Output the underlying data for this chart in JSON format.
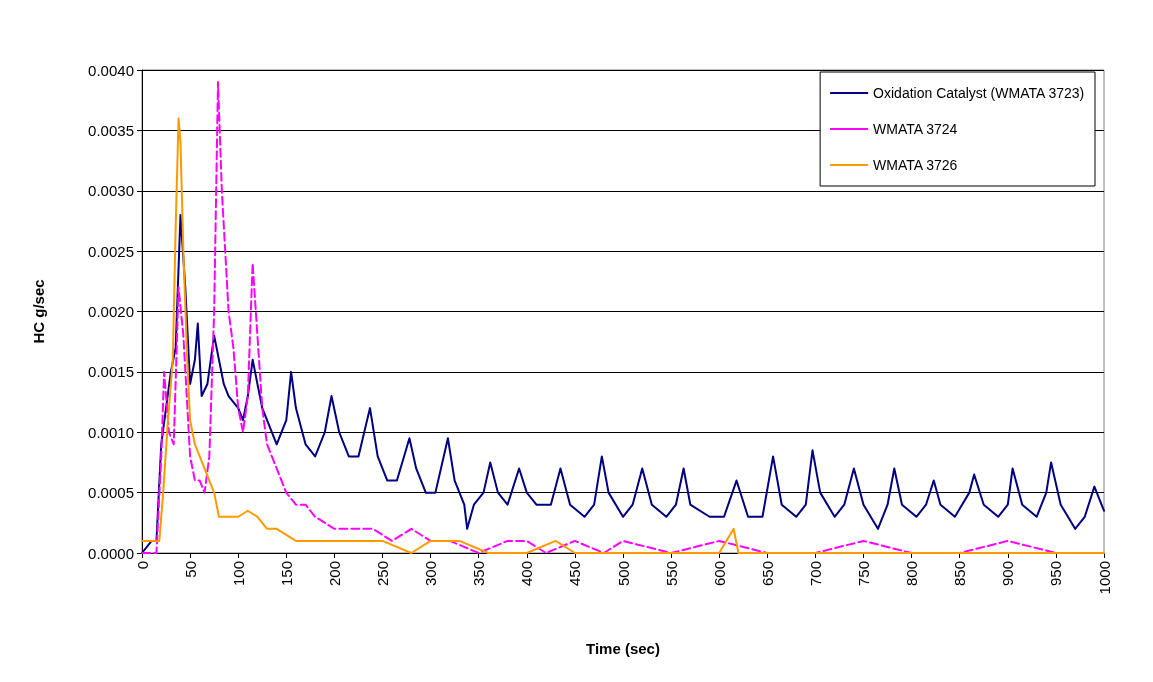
{
  "chart_data": {
    "type": "line",
    "xlabel": "Time (sec)",
    "ylabel": "HC g/sec",
    "xlim": [
      0,
      1000
    ],
    "xticks": [
      0,
      50,
      100,
      150,
      200,
      250,
      300,
      350,
      400,
      450,
      500,
      550,
      600,
      650,
      700,
      750,
      800,
      850,
      900,
      950,
      1000
    ],
    "ylim": [
      0,
      0.004
    ],
    "yticks": [
      {
        "value": 0,
        "label": "0.0000"
      },
      {
        "value": 0.0005,
        "label": "0.0005"
      },
      {
        "value": 0.001,
        "label": "0.0010"
      },
      {
        "value": 0.0015,
        "label": "0.0015"
      },
      {
        "value": 0.002,
        "label": "0.0020"
      },
      {
        "value": 0.0025,
        "label": "0.0025"
      },
      {
        "value": 0.003,
        "label": "0.0030"
      },
      {
        "value": 0.0035,
        "label": "0.0035"
      },
      {
        "value": 0.004,
        "label": "0.0040"
      }
    ],
    "grid": "y",
    "legend": "top right",
    "marker": "none",
    "series": [
      {
        "name": "Oxidation Catalyst (WMATA 3723)",
        "color": "#000080",
        "line_style": "solid",
        "x": [
          0,
          10,
          15,
          20,
          25,
          30,
          35,
          40,
          45,
          50,
          55,
          58,
          62,
          68,
          75,
          80,
          85,
          90,
          100,
          105,
          110,
          115,
          120,
          125,
          130,
          140,
          150,
          155,
          160,
          170,
          180,
          190,
          197,
          205,
          215,
          225,
          237,
          245,
          255,
          265,
          278,
          285,
          295,
          305,
          318,
          325,
          335,
          338,
          345,
          355,
          362,
          370,
          380,
          392,
          400,
          410,
          425,
          435,
          445,
          460,
          470,
          478,
          485,
          500,
          510,
          520,
          530,
          545,
          555,
          563,
          570,
          590,
          605,
          618,
          630,
          645,
          656,
          665,
          680,
          690,
          697,
          705,
          720,
          730,
          740,
          750,
          765,
          775,
          782,
          790,
          805,
          815,
          823,
          830,
          845,
          860,
          865,
          875,
          890,
          900,
          905,
          915,
          930,
          940,
          945,
          955,
          970,
          980,
          990,
          1000
        ],
        "values": [
          0,
          0.0001,
          0.0001,
          0.0009,
          0.0012,
          0.0015,
          0.0017,
          0.0028,
          0.0022,
          0.0014,
          0.0016,
          0.0019,
          0.0013,
          0.0014,
          0.0018,
          0.0016,
          0.0014,
          0.0013,
          0.0012,
          0.0011,
          0.0013,
          0.0016,
          0.0014,
          0.0012,
          0.0011,
          0.0009,
          0.0011,
          0.0015,
          0.0012,
          0.0009,
          0.0008,
          0.001,
          0.0013,
          0.001,
          0.0008,
          0.0008,
          0.0012,
          0.0008,
          0.0006,
          0.0006,
          0.00095,
          0.0007,
          0.0005,
          0.0005,
          0.00095,
          0.0006,
          0.0004,
          0.0002,
          0.0004,
          0.0005,
          0.00075,
          0.0005,
          0.0004,
          0.0007,
          0.0005,
          0.0004,
          0.0004,
          0.0007,
          0.0004,
          0.0003,
          0.0004,
          0.0008,
          0.0005,
          0.0003,
          0.0004,
          0.0007,
          0.0004,
          0.0003,
          0.0004,
          0.0007,
          0.0004,
          0.0003,
          0.0003,
          0.0006,
          0.0003,
          0.0003,
          0.0008,
          0.0004,
          0.0003,
          0.0004,
          0.00085,
          0.0005,
          0.0003,
          0.0004,
          0.0007,
          0.0004,
          0.0002,
          0.0004,
          0.0007,
          0.0004,
          0.0003,
          0.0004,
          0.0006,
          0.0004,
          0.0003,
          0.0005,
          0.00065,
          0.0004,
          0.0003,
          0.0004,
          0.0007,
          0.0004,
          0.0003,
          0.0005,
          0.00075,
          0.0004,
          0.0002,
          0.0003,
          0.00055,
          0.00035
        ]
      },
      {
        "name": "WMATA 3724",
        "color": "#ff00ff",
        "line_style": "dashed",
        "x": [
          0,
          15,
          20,
          23,
          28,
          33,
          38,
          43,
          50,
          55,
          60,
          65,
          70,
          75,
          79,
          83,
          90,
          95,
          100,
          105,
          110,
          115,
          120,
          125,
          130,
          140,
          150,
          160,
          170,
          180,
          200,
          220,
          240,
          260,
          280,
          300,
          320,
          350,
          380,
          400,
          420,
          450,
          480,
          500,
          550,
          600,
          650,
          700,
          750,
          800,
          850,
          900,
          950,
          1000
        ],
        "values": [
          0,
          0,
          0.0008,
          0.0015,
          0.001,
          0.0009,
          0.0022,
          0.0018,
          0.0008,
          0.0006,
          0.0006,
          0.0005,
          0.0008,
          0.002,
          0.0039,
          0.003,
          0.002,
          0.0017,
          0.0012,
          0.001,
          0.0013,
          0.0024,
          0.0018,
          0.0012,
          0.0009,
          0.0007,
          0.0005,
          0.0004,
          0.0004,
          0.0003,
          0.0002,
          0.0002,
          0.0002,
          0.0001,
          0.0002,
          0.0001,
          0.0001,
          0,
          0.0001,
          0.0001,
          0,
          0.0001,
          0,
          0.0001,
          0,
          0.0001,
          0,
          0,
          0.0001,
          0,
          0,
          0.0001,
          0,
          0
        ]
      },
      {
        "name": "WMATA 3726",
        "color": "#ff9900",
        "line_style": "solid",
        "x": [
          0,
          10,
          18,
          22,
          27,
          32,
          35,
          38,
          40,
          43,
          47,
          50,
          55,
          60,
          65,
          70,
          75,
          80,
          90,
          100,
          110,
          120,
          130,
          140,
          160,
          180,
          200,
          220,
          250,
          280,
          300,
          330,
          360,
          400,
          430,
          450,
          500,
          550,
          600,
          615,
          620,
          650,
          700,
          750,
          800,
          850,
          900,
          950,
          1000
        ],
        "values": [
          0.0001,
          0.0001,
          0.0001,
          0.0005,
          0.0011,
          0.0016,
          0.0027,
          0.0036,
          0.0034,
          0.0025,
          0.0016,
          0.0011,
          0.0009,
          0.0008,
          0.0007,
          0.0006,
          0.0005,
          0.0003,
          0.0003,
          0.0003,
          0.00035,
          0.0003,
          0.0002,
          0.0002,
          0.0001,
          0.0001,
          0.0001,
          0.0001,
          0.0001,
          0,
          0.0001,
          0.0001,
          0,
          0,
          0.0001,
          0,
          0,
          0,
          0,
          0.0002,
          0,
          0,
          0,
          0,
          0,
          0,
          0,
          0,
          0
        ]
      }
    ]
  }
}
